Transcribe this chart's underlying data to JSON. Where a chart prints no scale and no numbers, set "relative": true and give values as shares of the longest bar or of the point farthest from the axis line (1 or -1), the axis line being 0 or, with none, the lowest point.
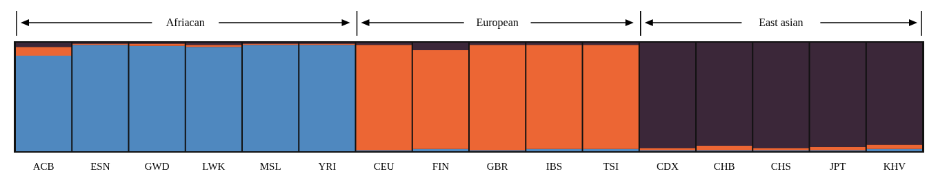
{
  "chart_data": {
    "type": "bar",
    "stacked": true,
    "relative": true,
    "grid": false,
    "categories": [
      "ACB",
      "ESN",
      "GWD",
      "LWK",
      "MSL",
      "YRI",
      "CEU",
      "FIN",
      "GBR",
      "IBS",
      "TSI",
      "CDX",
      "CHB",
      "CHS",
      "JPT",
      "KHV"
    ],
    "series": [
      {
        "color": "#4f88bf",
        "values": [
          0.88,
          0.98,
          0.97,
          0.96,
          0.98,
          0.98,
          0.01,
          0.02,
          0.01,
          0.02,
          0.02,
          0.01,
          0.01,
          0.01,
          0.01,
          0.02
        ]
      },
      {
        "color": "#ec6634",
        "values": [
          0.08,
          0.01,
          0.02,
          0.02,
          0.01,
          0.01,
          0.97,
          0.91,
          0.97,
          0.96,
          0.96,
          0.02,
          0.04,
          0.02,
          0.03,
          0.04
        ]
      },
      {
        "color": "#3b2739",
        "values": [
          0.04,
          0.01,
          0.01,
          0.02,
          0.01,
          0.01,
          0.02,
          0.07,
          0.02,
          0.02,
          0.02,
          0.97,
          0.95,
          0.97,
          0.96,
          0.94
        ]
      }
    ],
    "annotations": [
      "Afriacan",
      "European",
      "East asian"
    ]
  }
}
